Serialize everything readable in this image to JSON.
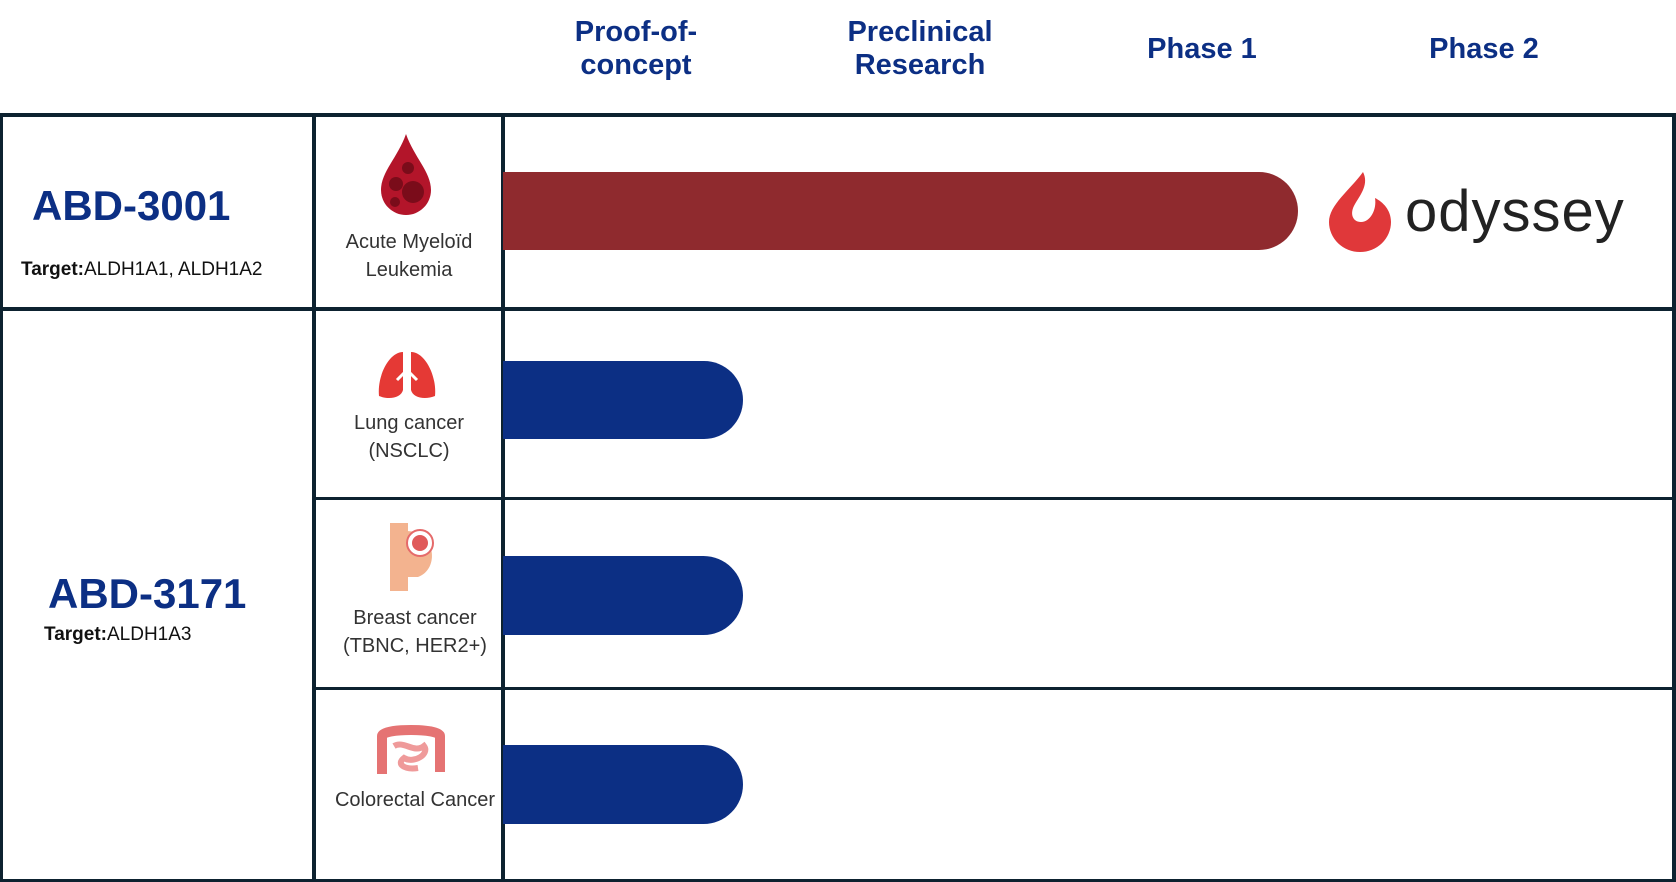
{
  "phases": [
    "Proof-of-concept",
    "Preclinical Research",
    "Phase 1",
    "Phase 2"
  ],
  "phases_display": [
    "Proof-of-\nconcept",
    "Preclinical\nResearch",
    "Phase 1",
    "Phase 2"
  ],
  "programs": [
    {
      "name": "ABD-3001",
      "target_label": "Target:",
      "target_value": "ALDH1A1, ALDH1A2",
      "indications": [
        {
          "name": "Acute Myeloïd Leukemia",
          "icon": "blood-drop-icon",
          "progress_phase": "Phase 1 (complete)",
          "bar_color": "#8f2a2e"
        }
      ],
      "partner": "odyssey"
    },
    {
      "name": "ABD-3171",
      "target_label": "Target:",
      "target_value": "ALDH1A3",
      "indications": [
        {
          "name": "Lung cancer (NSCLC)",
          "icon": "lungs-icon",
          "progress_phase": "Proof-of-concept",
          "bar_color": "#0c2f84"
        },
        {
          "name": "Breast cancer (TBNC, HER2+)",
          "icon": "breast-cancer-icon",
          "progress_phase": "Proof-of-concept",
          "bar_color": "#0c2f84"
        },
        {
          "name": "Colorectal Cancer",
          "icon": "intestine-icon",
          "progress_phase": "Proof-of-concept",
          "bar_color": "#0c2f84"
        }
      ]
    }
  ]
}
